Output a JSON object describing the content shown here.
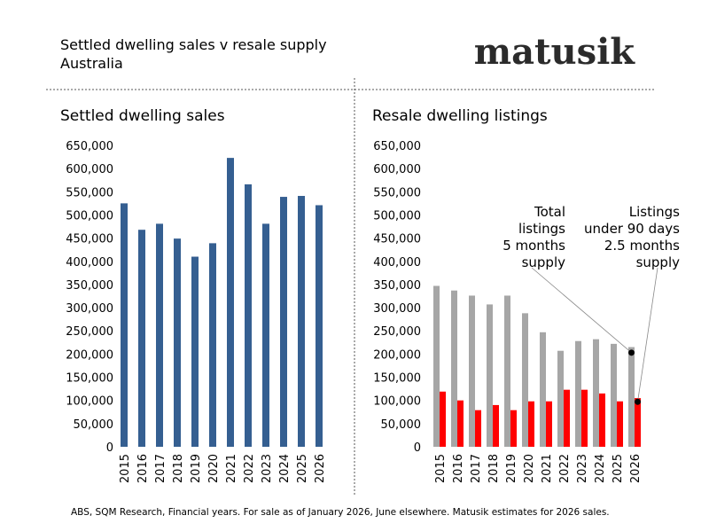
{
  "header": {
    "title": "Settled dwelling sales v resale supply",
    "subtitle": "Australia",
    "logo": "matusik"
  },
  "footer": "ABS, SQM Research, Financial years.  For sale as of January 2026, June elsewhere.  Matusik estimates for 2026 sales.",
  "chart_data": [
    {
      "type": "bar",
      "title": "Settled dwelling sales",
      "categories": [
        "2015",
        "2016",
        "2017",
        "2018",
        "2019",
        "2020",
        "2021",
        "2022",
        "2023",
        "2024",
        "2025",
        "2026"
      ],
      "series": [
        {
          "values": [
            525000,
            468000,
            481000,
            449000,
            410000,
            439000,
            623000,
            566000,
            481000,
            539000,
            541000,
            521000
          ],
          "color": "#355f91"
        }
      ],
      "ylim": [
        0,
        650000
      ],
      "yticks": [
        "0",
        "50,000",
        "100,000",
        "150,000",
        "200,000",
        "250,000",
        "300,000",
        "350,000",
        "400,000",
        "450,000",
        "500,000",
        "550,000",
        "600,000",
        "650,000"
      ],
      "grid": false
    },
    {
      "type": "bar",
      "title": "Resale dwelling listings",
      "categories": [
        "2015",
        "2016",
        "2017",
        "2018",
        "2019",
        "2020",
        "2021",
        "2022",
        "2023",
        "2024",
        "2025",
        "2026"
      ],
      "series": [
        {
          "values": [
            347000,
            337000,
            326000,
            307000,
            326000,
            288000,
            247000,
            207000,
            228000,
            232000,
            222000,
            215000
          ],
          "color": "#a6a6a6"
        },
        {
          "values": [
            119000,
            100000,
            79000,
            90000,
            79000,
            98000,
            98000,
            123000,
            123000,
            115000,
            98000,
            105000
          ],
          "color": "#ff0000"
        }
      ],
      "ylim": [
        0,
        650000
      ],
      "yticks": [
        "0",
        "50,000",
        "100,000",
        "150,000",
        "200,000",
        "250,000",
        "300,000",
        "350,000",
        "400,000",
        "450,000",
        "500,000",
        "550,000",
        "600,000",
        "650,000"
      ],
      "grid": false,
      "annotations": [
        {
          "lines": [
            "Total",
            "listings",
            "5 months",
            "supply"
          ],
          "series": 0,
          "category": "2026",
          "marker_value": 203000
        },
        {
          "lines": [
            "Listings",
            "under 90 days",
            "2.5 months",
            "supply"
          ],
          "series": 1,
          "category": "2026",
          "marker_value": 97000
        }
      ]
    }
  ]
}
